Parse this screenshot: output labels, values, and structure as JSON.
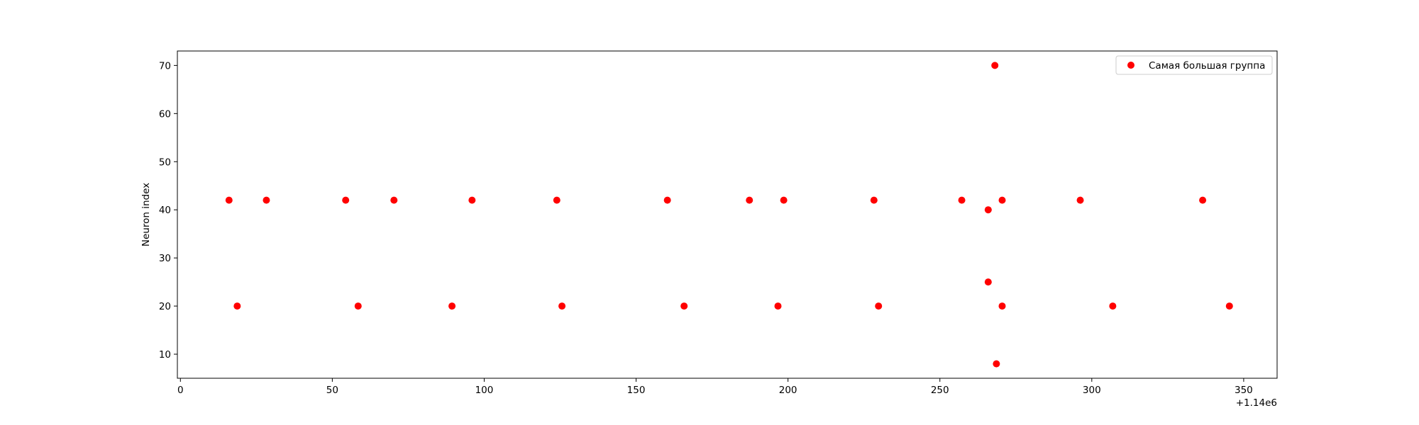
{
  "chart_data": {
    "type": "scatter",
    "title": "",
    "xlabel": "",
    "ylabel": "Neuron index",
    "x_offset_label": "+1.14e6",
    "xlim": [
      -1,
      361
    ],
    "ylim": [
      5,
      73
    ],
    "x_ticks": [
      0,
      50,
      100,
      150,
      200,
      250,
      300,
      350
    ],
    "y_ticks": [
      10,
      20,
      30,
      40,
      50,
      60,
      70
    ],
    "x_tick_labels": [
      "0",
      "50",
      "100",
      "150",
      "200",
      "250",
      "300",
      "350"
    ],
    "y_tick_labels": [
      "10",
      "20",
      "30",
      "40",
      "50",
      "60",
      "70"
    ],
    "grid": false,
    "legend_position": "top-right",
    "series": [
      {
        "name": "Самая большая группа",
        "color": "#ff0000",
        "points": [
          {
            "x": 16,
            "y": 42
          },
          {
            "x": 18.7,
            "y": 20
          },
          {
            "x": 28.3,
            "y": 42
          },
          {
            "x": 54.4,
            "y": 42
          },
          {
            "x": 58.5,
            "y": 20
          },
          {
            "x": 70.3,
            "y": 42
          },
          {
            "x": 89.4,
            "y": 20
          },
          {
            "x": 96,
            "y": 42
          },
          {
            "x": 123.9,
            "y": 42
          },
          {
            "x": 125.6,
            "y": 20
          },
          {
            "x": 160.3,
            "y": 42
          },
          {
            "x": 165.8,
            "y": 20
          },
          {
            "x": 187.3,
            "y": 42
          },
          {
            "x": 196.7,
            "y": 20
          },
          {
            "x": 198.6,
            "y": 42
          },
          {
            "x": 228.3,
            "y": 42
          },
          {
            "x": 229.8,
            "y": 20
          },
          {
            "x": 257.2,
            "y": 42
          },
          {
            "x": 265.9,
            "y": 40
          },
          {
            "x": 265.9,
            "y": 25
          },
          {
            "x": 268.1,
            "y": 70
          },
          {
            "x": 268.6,
            "y": 8
          },
          {
            "x": 270.5,
            "y": 42
          },
          {
            "x": 270.5,
            "y": 20
          },
          {
            "x": 296.2,
            "y": 42
          },
          {
            "x": 306.9,
            "y": 20
          },
          {
            "x": 336.5,
            "y": 42
          },
          {
            "x": 345.3,
            "y": 20
          }
        ]
      }
    ]
  }
}
